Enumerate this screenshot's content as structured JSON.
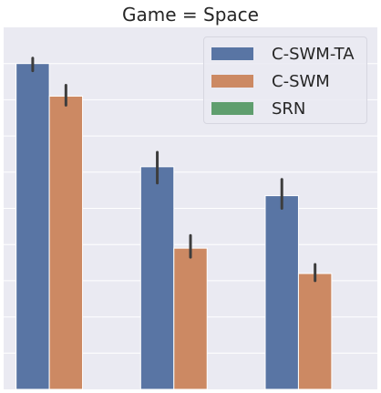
{
  "chart_data": {
    "type": "bar",
    "title": "Game = Space",
    "xlabel": "",
    "ylabel": "",
    "categories": [
      "",
      "",
      ""
    ],
    "ylim": [
      0,
      1.0
    ],
    "grid": true,
    "legend_position": "top-right",
    "series": [
      {
        "name": "C-SWM-TA",
        "color": "#5975a4",
        "values": [
          0.9,
          0.615,
          0.535
        ],
        "err_low": [
          0.88,
          0.57,
          0.5
        ],
        "err_high": [
          0.915,
          0.655,
          0.58
        ]
      },
      {
        "name": "C-SWM",
        "color": "#cc8963",
        "values": [
          0.81,
          0.39,
          0.32
        ],
        "err_low": [
          0.785,
          0.365,
          0.3
        ],
        "err_high": [
          0.84,
          0.425,
          0.345
        ]
      },
      {
        "name": "SRN",
        "color": "#5f9e6e",
        "values": [
          0,
          0,
          0
        ],
        "err_low": [
          0,
          0,
          0
        ],
        "err_high": [
          0,
          0,
          0
        ]
      }
    ]
  }
}
